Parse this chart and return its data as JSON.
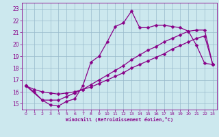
{
  "xlabel": "Windchill (Refroidissement éolien,°C)",
  "bg_color": "#cce8ee",
  "line_color": "#880088",
  "grid_color": "#99bbcc",
  "xlim": [
    -0.5,
    23.5
  ],
  "ylim": [
    14.5,
    23.5
  ],
  "xticks": [
    0,
    1,
    2,
    3,
    4,
    5,
    6,
    7,
    8,
    9,
    10,
    11,
    12,
    13,
    14,
    15,
    16,
    17,
    18,
    19,
    20,
    21,
    22,
    23
  ],
  "yticks": [
    15,
    16,
    17,
    18,
    19,
    20,
    21,
    22,
    23
  ],
  "line1_x": [
    0,
    1,
    2,
    3,
    4,
    5,
    6,
    7,
    8,
    9,
    10,
    11,
    12,
    13,
    14,
    15,
    16,
    17,
    18,
    19,
    20,
    21,
    22,
    23
  ],
  "line1_y": [
    16.5,
    16.0,
    15.3,
    14.9,
    14.8,
    15.2,
    15.4,
    16.5,
    18.5,
    19.0,
    20.2,
    21.5,
    21.8,
    22.8,
    21.4,
    21.4,
    21.6,
    21.6,
    21.5,
    21.4,
    21.1,
    19.9,
    18.4,
    18.3
  ],
  "line2_x": [
    0,
    2,
    3,
    4,
    5,
    6,
    7,
    8,
    9,
    10,
    11,
    12,
    13,
    14,
    15,
    16,
    17,
    18,
    19,
    20,
    21,
    22,
    23
  ],
  "line2_y": [
    16.5,
    15.3,
    15.3,
    15.3,
    15.6,
    15.9,
    16.2,
    16.6,
    17.0,
    17.4,
    17.8,
    18.2,
    18.7,
    19.1,
    19.5,
    19.8,
    20.2,
    20.5,
    20.8,
    21.1,
    21.2,
    21.2,
    18.3
  ],
  "line3_x": [
    0,
    1,
    2,
    3,
    4,
    5,
    6,
    7,
    8,
    9,
    10,
    11,
    12,
    13,
    14,
    15,
    16,
    17,
    18,
    19,
    20,
    21,
    22,
    23
  ],
  "line3_y": [
    16.5,
    16.2,
    16.0,
    15.9,
    15.8,
    15.9,
    16.0,
    16.2,
    16.4,
    16.7,
    17.0,
    17.3,
    17.6,
    18.0,
    18.3,
    18.6,
    18.9,
    19.2,
    19.6,
    19.9,
    20.2,
    20.5,
    20.7,
    18.3
  ],
  "marker": "D",
  "marker_size": 2.5,
  "linewidth": 0.9
}
